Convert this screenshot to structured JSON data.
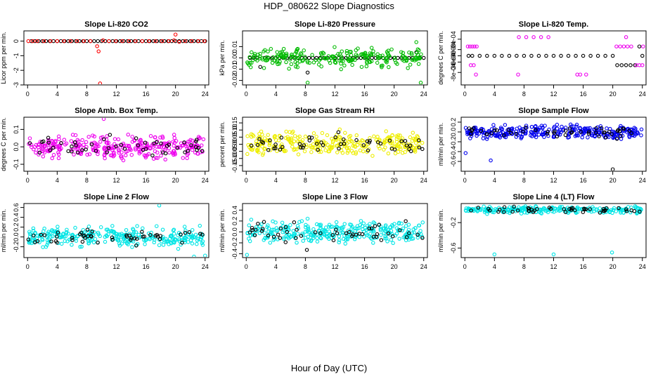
{
  "page": {
    "title": "HDP_080622  Slope Diagnostics",
    "x_axis_label": "Hour of Day (UTC)"
  },
  "chart_data": [
    {
      "type": "scatter",
      "title": "Slope Li-820 CO2",
      "ylabel": "Licor ppm per min.",
      "xlim": [
        -0.5,
        24.5
      ],
      "ylim": [
        -3,
        0.7
      ],
      "xticks": [
        0,
        4,
        8,
        12,
        16,
        20,
        24
      ],
      "yticks": [
        0,
        -1,
        -2,
        -3
      ],
      "ytick_labels": [
        "0",
        "-1",
        "-2",
        "-3"
      ],
      "series": [
        {
          "name": "black",
          "color": "#000000",
          "pattern": "flat",
          "x": [
            0.5,
            1,
            1.5,
            2,
            2.5,
            3,
            3.5,
            4,
            4.5,
            5,
            5.5,
            6,
            6.5,
            7,
            7.5,
            8,
            8.5,
            9,
            9.5,
            10,
            10.5,
            11,
            11.5,
            12,
            12.5,
            13,
            13.5,
            14,
            14.5,
            15,
            15.5,
            16,
            16.5,
            17,
            17.5,
            18,
            18.5,
            19,
            19.5,
            20,
            20.5,
            21,
            21.5,
            22,
            22.5,
            23,
            23.5,
            24
          ],
          "y": [
            0,
            0,
            0,
            0,
            0,
            0,
            0,
            0,
            0,
            0,
            0,
            0,
            0,
            0,
            0,
            0,
            0,
            0,
            0,
            0,
            0,
            0,
            0,
            0,
            0,
            0,
            0,
            0,
            0,
            0,
            0,
            0,
            0,
            0,
            0,
            0,
            0,
            0,
            0,
            0,
            0,
            0,
            0,
            0,
            0,
            0,
            0,
            0
          ]
        },
        {
          "name": "red",
          "color": "#ff0000",
          "pattern": "flat",
          "x": [
            0.1,
            0.7,
            1.3,
            2.2,
            3.1,
            4.0,
            4.9,
            5.8,
            6.7,
            7.6,
            8.5,
            9.4,
            9.6,
            9.8,
            10.2,
            11.0,
            11.9,
            12.8,
            13.7,
            14.6,
            15.5,
            16.4,
            17.3,
            18.2,
            19.1,
            19.8,
            20.0,
            20.5,
            21.3,
            22.2,
            23.1,
            23.9
          ],
          "y": [
            0,
            0,
            0,
            0,
            0,
            0,
            0,
            0,
            0,
            0,
            0,
            -0.35,
            -0.7,
            -2.9,
            0.05,
            0,
            0,
            0,
            0,
            0,
            0,
            0,
            0,
            0,
            0,
            0.05,
            0.45,
            -0.05,
            0,
            0,
            0,
            0
          ]
        }
      ]
    },
    {
      "type": "scatter",
      "title": "Slope Li-820 Pressure",
      "ylabel": "kPa per min.",
      "xlim": [
        -0.5,
        24.5
      ],
      "ylim": [
        -0.024,
        0.024
      ],
      "xticks": [
        0,
        4,
        8,
        12,
        16,
        20,
        24
      ],
      "yticks": [
        -0.02,
        -0.01,
        0.0,
        0.01
      ],
      "ytick_labels": [
        "-0.02",
        "-0.01",
        "0.00",
        "0.01"
      ],
      "series": [
        {
          "name": "black",
          "color": "#000000",
          "pattern": "flat",
          "x": [
            0.5,
            1,
            1.5,
            1.9,
            2.5,
            3,
            3.5,
            4,
            4.5,
            5,
            5.5,
            6,
            6.5,
            7,
            7.5,
            8,
            8.3,
            8.5,
            9,
            9.5,
            10,
            10.5,
            11,
            11.5,
            12,
            12.5,
            13,
            13.5,
            14,
            14.5,
            15,
            15.5,
            16,
            16.5,
            17,
            17.5,
            18,
            18.5,
            19,
            19.5,
            20,
            20.5,
            21,
            21.5,
            22,
            22.5,
            23,
            23.5,
            24
          ],
          "y": [
            0,
            0,
            0,
            -0.008,
            0,
            0,
            0,
            0,
            0,
            0,
            0,
            0,
            0,
            0,
            0,
            0,
            -0.013,
            0,
            0,
            0,
            0,
            0,
            0,
            0,
            0,
            0,
            0,
            0,
            0,
            0,
            0,
            0,
            0,
            0,
            0,
            0,
            0,
            0,
            0,
            0,
            0,
            0,
            0,
            0,
            0,
            0,
            0.005,
            0,
            0
          ]
        },
        {
          "name": "green",
          "color": "#00bb00",
          "pattern": "noise",
          "n": 240,
          "spread": 0.006,
          "outliers": [
            [
              8.3,
              -0.022
            ],
            [
              23.6,
              -0.022
            ],
            [
              23.0,
              0.014
            ]
          ]
        }
      ]
    },
    {
      "type": "scatter",
      "title": "Slope Li-820 Temp.",
      "ylabel": "degrees C per min.",
      "xlim": [
        -0.5,
        24.5
      ],
      "ylim": [
        -0.0014,
        0.0012
      ],
      "xticks": [
        0,
        4,
        8,
        12,
        16,
        20,
        24
      ],
      "yticks": [
        0.0008,
        0.0003,
        0.0,
        -0.0003,
        -0.0008
      ],
      "ytick_labels": [
        "8e-04",
        "3e-04",
        "0e+00",
        "-3e-04",
        "-8e-04"
      ],
      "series": [
        {
          "name": "black",
          "color": "#000000",
          "pattern": "flat",
          "x": [
            0.5,
            1,
            2,
            3,
            4,
            5,
            6,
            7,
            8,
            9,
            10,
            11,
            12,
            13,
            14,
            15,
            16,
            17,
            18,
            19,
            20,
            20.6,
            21.2,
            21.8,
            22.4,
            23,
            23.6,
            24
          ],
          "y": [
            0,
            0,
            0,
            0,
            0,
            0,
            0,
            0,
            0,
            0,
            0,
            0,
            0,
            0,
            0,
            0,
            0,
            0,
            0,
            0,
            0,
            -0.00045,
            -0.00045,
            -0.00045,
            -0.00045,
            -0.00045,
            0.00045,
            0
          ]
        },
        {
          "name": "magenta",
          "color": "#ee00ee",
          "pattern": "flat",
          "x": [
            0.4,
            0.7,
            1.0,
            1.3,
            1.6,
            0.8,
            1.2,
            1.5,
            7.3,
            8.3,
            9.3,
            10.3,
            11.3,
            7.2,
            15.2,
            15.6,
            16.4,
            20.5,
            21.0,
            21.5,
            22.0,
            22.5,
            21.8,
            23.2,
            23.6,
            24.0,
            24.1
          ],
          "y": [
            0.00045,
            0.00045,
            0.00045,
            0.00045,
            0.00045,
            -0.00045,
            -0.00045,
            -0.0009,
            0.0009,
            0.0009,
            0.0009,
            0.0009,
            0.0009,
            -0.0009,
            -0.0009,
            -0.0009,
            -0.0009,
            0.00045,
            0.00045,
            0.00045,
            0.00045,
            0.00045,
            0.0009,
            -0.00045,
            -0.00045,
            -0.00045,
            0.00045
          ]
        }
      ]
    },
    {
      "type": "scatter",
      "title": "Slope Amb. Box Temp.",
      "ylabel": "degrees C per min.",
      "xlim": [
        -0.5,
        24.5
      ],
      "ylim": [
        -0.14,
        0.17
      ],
      "xticks": [
        0,
        4,
        8,
        12,
        16,
        20,
        24
      ],
      "yticks": [
        0.1,
        0.0,
        -0.1
      ],
      "ytick_labels": [
        "0.1",
        "0.0",
        "-0.1"
      ],
      "series": [
        {
          "name": "magenta",
          "color": "#ee00ee",
          "pattern": "noise",
          "n": 300,
          "spread": 0.045,
          "outliers": [
            [
              10.3,
              0.16
            ]
          ]
        },
        {
          "name": "black",
          "color": "#000000",
          "pattern": "noise",
          "n": 50,
          "spread": 0.04,
          "outliers": []
        }
      ]
    },
    {
      "type": "scatter",
      "title": "Slope Gas Stream RH",
      "ylabel": "percent per min.",
      "xlim": [
        -0.5,
        24.5
      ],
      "ylim": [
        -0.19,
        0.19
      ],
      "xticks": [
        0,
        4,
        8,
        12,
        16,
        20,
        24
      ],
      "yticks": [
        0.15,
        0.1,
        0.05,
        0.0,
        -0.05,
        -0.1,
        -0.15
      ],
      "ytick_labels": [
        "0.15",
        "0.10",
        "0.05",
        "0.00",
        "-0.05",
        "-0.10",
        "-0.15"
      ],
      "series": [
        {
          "name": "yellow",
          "color": "#eeee00",
          "pattern": "noise",
          "n": 300,
          "spread": 0.06,
          "outliers": []
        },
        {
          "name": "black",
          "color": "#000000",
          "pattern": "noise",
          "n": 50,
          "spread": 0.05,
          "outliers": []
        }
      ]
    },
    {
      "type": "scatter",
      "title": "Slope Sample Flow",
      "ylabel": "ml/min per min.",
      "xlim": [
        -0.5,
        24.5
      ],
      "ylim": [
        -0.8,
        0.3
      ],
      "xticks": [
        0,
        4,
        8,
        12,
        16,
        20,
        24
      ],
      "yticks": [
        0.2,
        0.0,
        -0.2,
        -0.4,
        -0.6
      ],
      "ytick_labels": [
        "0.2",
        "0.0",
        "-0.2",
        "-0.4",
        "-0.6"
      ],
      "series": [
        {
          "name": "blue",
          "color": "#0000ee",
          "pattern": "noise",
          "n": 300,
          "spread": 0.1,
          "outliers": [
            [
              3.5,
              -0.58
            ],
            [
              0.1,
              -0.43
            ]
          ]
        },
        {
          "name": "black",
          "color": "#000000",
          "pattern": "noise",
          "n": 50,
          "spread": 0.09,
          "outliers": [
            [
              20.0,
              -0.76
            ]
          ]
        }
      ]
    },
    {
      "type": "scatter",
      "title": "Slope Line 2 Flow",
      "ylabel": "ml/min per min.",
      "xlim": [
        -0.5,
        24.5
      ],
      "ylim": [
        -0.42,
        0.68
      ],
      "xticks": [
        0,
        4,
        8,
        12,
        16,
        20,
        24
      ],
      "yticks": [
        0.6,
        0.4,
        0.2,
        0.0,
        -0.2
      ],
      "ytick_labels": [
        "0.6",
        "0.4",
        "0.2",
        "0.0",
        "-0.2"
      ],
      "series": [
        {
          "name": "cyan",
          "color": "#00e5e5",
          "pattern": "noise",
          "n": 300,
          "spread": 0.14,
          "outliers": [
            [
              17.8,
              0.64
            ],
            [
              24.0,
              -0.38
            ],
            [
              22.5,
              -0.4
            ]
          ]
        },
        {
          "name": "black",
          "color": "#000000",
          "pattern": "noise",
          "n": 50,
          "spread": 0.1,
          "outliers": []
        }
      ]
    },
    {
      "type": "scatter",
      "title": "Slope Line 3 Flow",
      "ylabel": "ml/min per min.",
      "xlim": [
        -0.5,
        24.5
      ],
      "ylim": [
        -0.47,
        0.52
      ],
      "xticks": [
        0,
        4,
        8,
        12,
        16,
        20,
        24
      ],
      "yticks": [
        0.4,
        0.2,
        0.0,
        -0.2,
        -0.4
      ],
      "ytick_labels": [
        "0.4",
        "0.2",
        "0.0",
        "-0.2",
        "-0.4"
      ],
      "series": [
        {
          "name": "cyan",
          "color": "#00e5e5",
          "pattern": "noise",
          "n": 300,
          "spread": 0.14,
          "outliers": [
            [
              0.1,
              -0.42
            ]
          ]
        },
        {
          "name": "black",
          "color": "#000000",
          "pattern": "noise",
          "n": 50,
          "spread": 0.12,
          "outliers": [
            [
              8.2,
              -0.33
            ]
          ]
        }
      ]
    },
    {
      "type": "scatter",
      "title": "Slope Line 4 (LT) Flow",
      "ylabel": "ml/min per min.",
      "xlim": [
        -0.5,
        24.5
      ],
      "ylim": [
        -0.75,
        0.1
      ],
      "xticks": [
        0,
        4,
        8,
        12,
        16,
        20,
        24
      ],
      "yticks": [
        -0.2,
        -0.6
      ],
      "ytick_labels": [
        "-0.2",
        "-0.6"
      ],
      "series": [
        {
          "name": "cyan",
          "color": "#00e5e5",
          "pattern": "noise",
          "n": 240,
          "spread": 0.04,
          "center": 0.0,
          "outliers": [
            [
              4.0,
              -0.7
            ],
            [
              12.0,
              -0.7
            ],
            [
              19.9,
              -0.67
            ]
          ]
        },
        {
          "name": "black",
          "color": "#000000",
          "pattern": "noise",
          "n": 45,
          "spread": 0.04,
          "center": 0.0,
          "outliers": []
        }
      ]
    }
  ]
}
